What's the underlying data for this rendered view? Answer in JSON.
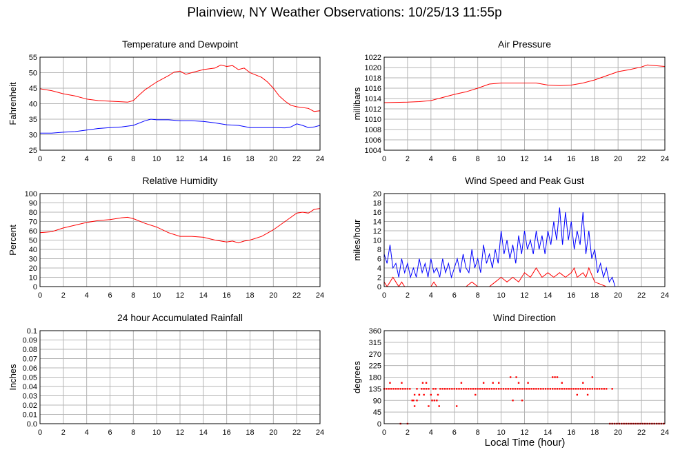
{
  "title": "Plainview, NY Weather Observations: 10/25/13 11:55p",
  "xlabel": "Local Time (hour)",
  "colors": {
    "red": "#ff0000",
    "blue": "#0000ff",
    "grid": "#b4b4b4"
  },
  "chart_data": [
    {
      "type": "line",
      "title": "Temperature and Dewpoint",
      "ylabel": "Fahrenheit",
      "xlim": [
        0,
        24
      ],
      "ylim": [
        25,
        55
      ],
      "xticks": [
        0,
        2,
        4,
        6,
        8,
        10,
        12,
        14,
        16,
        18,
        20,
        22,
        24
      ],
      "yticks": [
        25,
        30,
        35,
        40,
        45,
        50,
        55
      ],
      "grid": true,
      "series": [
        {
          "color": "#ff0000",
          "x": [
            0,
            1,
            2,
            3,
            4,
            5,
            6,
            7,
            7.5,
            8,
            8.5,
            9,
            10,
            11,
            11.5,
            12,
            12.5,
            13,
            14,
            15,
            15.5,
            16,
            16.5,
            17,
            17.5,
            18,
            19,
            19.5,
            20,
            20.5,
            21,
            21.5,
            22,
            23,
            23.5,
            24
          ],
          "y": [
            44.8,
            44.2,
            43.2,
            42.5,
            41.5,
            41.0,
            40.8,
            40.6,
            40.5,
            41.0,
            42.8,
            44.5,
            47.0,
            49.0,
            50.2,
            50.5,
            49.5,
            50.0,
            51.0,
            51.5,
            52.5,
            52.0,
            52.3,
            51.0,
            51.5,
            50.0,
            48.5,
            47.0,
            45.0,
            42.5,
            40.8,
            39.5,
            39.0,
            38.5,
            37.5,
            37.7
          ]
        },
        {
          "color": "#0000ff",
          "x": [
            0,
            1,
            2,
            3,
            4,
            5,
            6,
            7,
            8,
            9,
            9.5,
            10,
            11,
            12,
            13,
            14,
            15,
            16,
            17,
            18,
            19,
            20,
            21,
            21.5,
            22,
            22.5,
            23,
            23.5,
            24
          ],
          "y": [
            30.5,
            30.5,
            30.8,
            31.0,
            31.5,
            32.0,
            32.3,
            32.5,
            33.0,
            34.5,
            35.0,
            34.8,
            34.8,
            34.5,
            34.5,
            34.3,
            33.8,
            33.2,
            33.0,
            32.3,
            32.3,
            32.3,
            32.2,
            32.5,
            33.5,
            33.0,
            32.3,
            32.5,
            33.0
          ]
        }
      ]
    },
    {
      "type": "line",
      "title": "Air Pressure",
      "ylabel": "millibars",
      "xlim": [
        0,
        24
      ],
      "ylim": [
        1004,
        1022
      ],
      "xticks": [
        0,
        2,
        4,
        6,
        8,
        10,
        12,
        14,
        16,
        18,
        20,
        22,
        24
      ],
      "yticks": [
        1004,
        1006,
        1008,
        1010,
        1012,
        1014,
        1016,
        1018,
        1020,
        1022
      ],
      "grid": true,
      "series": [
        {
          "color": "#ff0000",
          "x": [
            0,
            2,
            3,
            4,
            5,
            6,
            7,
            8,
            9,
            10,
            12,
            13,
            14,
            15,
            16,
            17,
            18,
            19,
            20,
            21,
            22,
            22.5,
            23,
            24
          ],
          "y": [
            1013.2,
            1013.3,
            1013.4,
            1013.6,
            1014.2,
            1014.8,
            1015.3,
            1016.0,
            1016.8,
            1017.0,
            1017.0,
            1017.0,
            1016.6,
            1016.5,
            1016.6,
            1017.0,
            1017.6,
            1018.4,
            1019.2,
            1019.6,
            1020.1,
            1020.5,
            1020.4,
            1020.2
          ]
        }
      ]
    },
    {
      "type": "line",
      "title": "Relative Humidity",
      "ylabel": "Percent",
      "xlim": [
        0,
        24
      ],
      "ylim": [
        0,
        100
      ],
      "xticks": [
        0,
        2,
        4,
        6,
        8,
        10,
        12,
        14,
        16,
        18,
        20,
        22,
        24
      ],
      "yticks": [
        0,
        10,
        20,
        30,
        40,
        50,
        60,
        70,
        80,
        90,
        100
      ],
      "grid": true,
      "series": [
        {
          "color": "#ff0000",
          "x": [
            0,
            1,
            2,
            3,
            4,
            5,
            6,
            7,
            7.5,
            8,
            9,
            10,
            11,
            12,
            13,
            14,
            15,
            16,
            16.5,
            17,
            17.5,
            18,
            19,
            20,
            21,
            22,
            22.5,
            23,
            23.5,
            24
          ],
          "y": [
            58,
            59,
            63,
            66,
            69,
            71,
            72,
            74,
            74.5,
            73,
            68,
            64,
            58,
            54,
            54,
            53,
            50,
            48,
            49,
            47,
            49,
            50,
            54,
            61,
            70,
            79,
            80,
            79,
            83,
            84
          ]
        }
      ]
    },
    {
      "type": "line",
      "title": "Wind Speed and Peak Gust",
      "ylabel": "miles/hour",
      "xlim": [
        0,
        24
      ],
      "ylim": [
        0,
        20
      ],
      "xticks": [
        0,
        2,
        4,
        6,
        8,
        10,
        12,
        14,
        16,
        18,
        20,
        22,
        24
      ],
      "yticks": [
        0,
        2,
        4,
        6,
        8,
        10,
        12,
        14,
        16,
        18,
        20
      ],
      "grid": true,
      "series": [
        {
          "color": "#0000ff",
          "x": [
            0,
            0.25,
            0.5,
            0.75,
            1,
            1.25,
            1.5,
            1.75,
            2,
            2.25,
            2.5,
            2.75,
            3,
            3.25,
            3.5,
            3.75,
            4,
            4.25,
            4.5,
            4.75,
            5,
            5.25,
            5.5,
            5.75,
            6,
            6.25,
            6.5,
            6.75,
            7,
            7.25,
            7.5,
            7.75,
            8,
            8.25,
            8.5,
            8.75,
            9,
            9.25,
            9.5,
            9.75,
            10,
            10.25,
            10.5,
            10.75,
            11,
            11.25,
            11.5,
            11.75,
            12,
            12.25,
            12.5,
            12.75,
            13,
            13.25,
            13.5,
            13.75,
            14,
            14.25,
            14.5,
            14.75,
            15,
            15.25,
            15.5,
            15.75,
            16,
            16.25,
            16.5,
            16.75,
            17,
            17.25,
            17.5,
            17.75,
            18,
            18.25,
            18.5,
            18.75,
            19,
            19.25,
            19.5,
            19.75,
            20,
            21,
            22,
            23,
            24
          ],
          "y": [
            7,
            5,
            9,
            4,
            5,
            2,
            6,
            3,
            5,
            2,
            4,
            2,
            6,
            3,
            5,
            2,
            6,
            3,
            4,
            2,
            6,
            3,
            5,
            2,
            4,
            6,
            3,
            7,
            4,
            3,
            8,
            4,
            6,
            3,
            9,
            5,
            7,
            4,
            8,
            5,
            12,
            7,
            10,
            6,
            9,
            5,
            11,
            7,
            12,
            8,
            10,
            7,
            12,
            8,
            11,
            7,
            12,
            9,
            14,
            10,
            17,
            9,
            16,
            10,
            14,
            8,
            12,
            9,
            16,
            7,
            12,
            6,
            8,
            3,
            5,
            2,
            4,
            1,
            2,
            0,
            0,
            0,
            0,
            0,
            0
          ]
        },
        {
          "color": "#ff0000",
          "x": [
            0,
            0.25,
            0.5,
            0.75,
            1,
            1.25,
            1.5,
            1.75,
            2,
            3,
            4,
            4.25,
            4.5,
            5,
            6,
            7,
            7.5,
            8,
            9,
            9.5,
            10,
            10.5,
            11,
            11.5,
            12,
            12.5,
            13,
            13.5,
            14,
            14.5,
            15,
            15.5,
            16,
            16.25,
            16.5,
            17,
            17.25,
            17.5,
            18,
            19,
            19.5,
            20,
            24
          ],
          "y": [
            1,
            0,
            1,
            2,
            1,
            0,
            1,
            0,
            0,
            0,
            0,
            1,
            0,
            0,
            0,
            0,
            1,
            0,
            0,
            1,
            2,
            1,
            2,
            1,
            3,
            2,
            4,
            2,
            3,
            2,
            3,
            2,
            3,
            4,
            2,
            3,
            2,
            4,
            1,
            0,
            0,
            0,
            0
          ]
        }
      ]
    },
    {
      "type": "line",
      "title": "24 hour Accumulated Rainfall",
      "ylabel": "Inches",
      "xlim": [
        0,
        24
      ],
      "ylim": [
        0,
        0.1
      ],
      "xticks": [
        0,
        2,
        4,
        6,
        8,
        10,
        12,
        14,
        16,
        18,
        20,
        22,
        24
      ],
      "yticks": [
        "0.0",
        "0.01",
        "0.02",
        "0.03",
        "0.04",
        "0.05",
        "0.06",
        "0.07",
        "0.08",
        "0.09",
        "0.1"
      ],
      "grid": true,
      "series": [
        {
          "color": "#ff0000",
          "x": [
            0,
            24
          ],
          "y": [
            0,
            0
          ]
        }
      ]
    },
    {
      "type": "scatter",
      "title": "Wind Direction",
      "ylabel": "degrees",
      "xlim": [
        0,
        24
      ],
      "ylim": [
        0,
        360
      ],
      "xticks": [
        0,
        2,
        4,
        6,
        8,
        10,
        12,
        14,
        16,
        18,
        20,
        22,
        24
      ],
      "yticks": [
        0,
        45,
        90,
        135,
        180,
        225,
        270,
        315,
        360
      ],
      "grid": true,
      "series": [
        {
          "color": "#ff0000",
          "x": [
            0,
            0.2,
            0.4,
            0.6,
            0.8,
            1,
            1.2,
            1.4,
            1.6,
            1.8,
            2,
            2.2,
            2.4,
            2.6,
            2.8,
            3,
            3.2,
            3.4,
            3.6,
            3.8,
            4,
            4.2,
            4.4,
            4.6,
            4.8,
            5,
            5.2,
            5.4,
            5.6,
            5.8,
            6,
            6.2,
            6.4,
            6.6,
            6.8,
            7,
            7.2,
            7.4,
            7.6,
            7.8,
            8,
            8.2,
            8.4,
            8.6,
            8.8,
            9,
            9.2,
            9.4,
            9.6,
            9.8,
            10,
            10.2,
            10.4,
            10.6,
            10.8,
            11,
            11.2,
            11.4,
            11.6,
            11.8,
            12,
            12.2,
            12.4,
            12.6,
            12.8,
            13,
            13.2,
            13.4,
            13.6,
            13.8,
            14,
            14.2,
            14.4,
            14.6,
            14.8,
            15,
            15.2,
            15.4,
            15.6,
            15.8,
            16,
            16.2,
            16.4,
            16.6,
            16.8,
            17,
            17.2,
            17.4,
            17.6,
            17.8,
            18,
            18.2,
            18.4,
            18.6,
            18.8,
            19,
            19.5,
            0.5,
            1.4,
            1.5,
            2.0,
            2.5,
            2.6,
            2.8,
            3.0,
            3.3,
            3.4,
            3.6,
            3.8,
            4.1,
            4.3,
            4.5,
            4.7,
            6.2,
            6.6,
            7.8,
            8.5,
            9.3,
            9.8,
            10.8,
            11.0,
            11.3,
            11.5,
            11.8,
            12.3,
            14.4,
            14.6,
            14.8,
            15.2,
            16.5,
            17.0,
            17.4,
            17.8
          ],
          "y": [
            135,
            135,
            135,
            135,
            135,
            135,
            135,
            135,
            135,
            135,
            135,
            135,
            90,
            112,
            135,
            112,
            135,
            135,
            135,
            135,
            112,
            135,
            135,
            112,
            135,
            135,
            135,
            135,
            135,
            135,
            135,
            135,
            135,
            135,
            135,
            135,
            135,
            135,
            135,
            135,
            135,
            135,
            135,
            135,
            135,
            135,
            135,
            135,
            135,
            135,
            135,
            135,
            135,
            135,
            135,
            135,
            135,
            135,
            135,
            135,
            135,
            135,
            135,
            135,
            135,
            135,
            135,
            135,
            135,
            135,
            135,
            135,
            135,
            135,
            135,
            135,
            135,
            135,
            135,
            135,
            135,
            135,
            135,
            135,
            135,
            135,
            135,
            135,
            135,
            135,
            135,
            135,
            135,
            135,
            135,
            135,
            135,
            158,
            0,
            158,
            0,
            90,
            68,
            90,
            112,
            158,
            112,
            158,
            68,
            90,
            90,
            90,
            68,
            68,
            158,
            112,
            158,
            158,
            158,
            180,
            90,
            180,
            158,
            90,
            158,
            180,
            180,
            180,
            158,
            112,
            158,
            112,
            180
          ]
        },
        {
          "color": "#ff0000",
          "x": [
            19.3,
            19.5,
            19.7,
            19.9,
            20.1,
            20.3,
            20.5,
            20.7,
            20.9,
            21.1,
            21.3,
            21.5,
            21.7,
            21.9,
            22.1,
            22.3,
            22.5,
            22.7,
            22.9,
            23.1,
            23.3,
            23.5,
            23.7,
            23.9
          ],
          "y": [
            0,
            0,
            0,
            0,
            0,
            0,
            0,
            0,
            0,
            0,
            0,
            0,
            0,
            0,
            0,
            0,
            0,
            0,
            0,
            0,
            0,
            0,
            0,
            0
          ]
        }
      ]
    }
  ]
}
